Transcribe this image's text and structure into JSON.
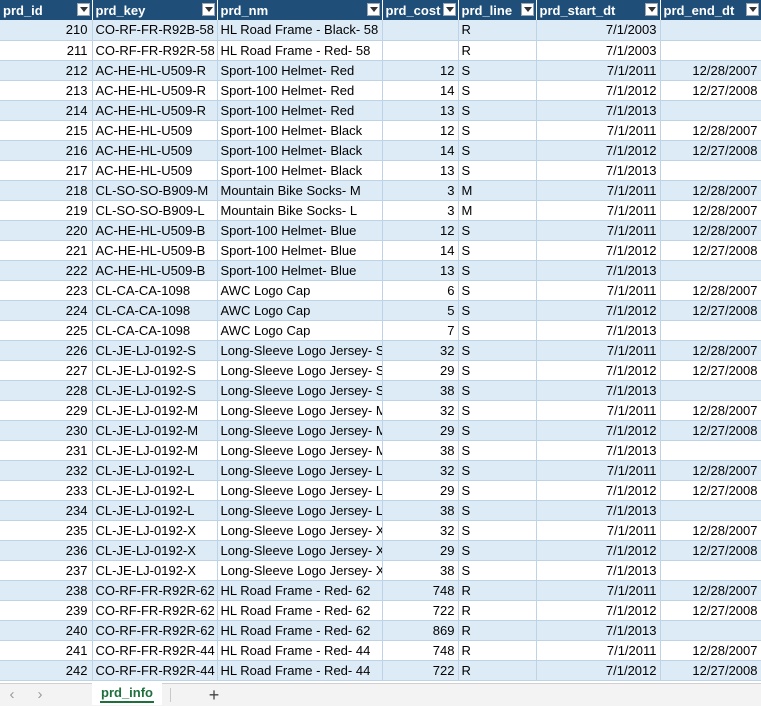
{
  "columns": [
    "prd_id",
    "prd_key",
    "prd_nm",
    "prd_cost",
    "prd_line",
    "prd_start_dt",
    "prd_end_dt"
  ],
  "rows": [
    [
      "210",
      "CO-RF-FR-R92B-58",
      "HL Road Frame - Black- 58",
      "",
      "R",
      "7/1/2003",
      ""
    ],
    [
      "211",
      "CO-RF-FR-R92R-58",
      "HL Road Frame - Red- 58",
      "",
      "R",
      "7/1/2003",
      ""
    ],
    [
      "212",
      "AC-HE-HL-U509-R",
      "Sport-100 Helmet- Red",
      "12",
      "S",
      "7/1/2011",
      "12/28/2007"
    ],
    [
      "213",
      "AC-HE-HL-U509-R",
      "Sport-100 Helmet- Red",
      "14",
      "S",
      "7/1/2012",
      "12/27/2008"
    ],
    [
      "214",
      "AC-HE-HL-U509-R",
      "Sport-100 Helmet- Red",
      "13",
      "S",
      "7/1/2013",
      ""
    ],
    [
      "215",
      "AC-HE-HL-U509",
      "Sport-100 Helmet- Black",
      "12",
      "S",
      "7/1/2011",
      "12/28/2007"
    ],
    [
      "216",
      "AC-HE-HL-U509",
      "Sport-100 Helmet- Black",
      "14",
      "S",
      "7/1/2012",
      "12/27/2008"
    ],
    [
      "217",
      "AC-HE-HL-U509",
      "Sport-100 Helmet- Black",
      "13",
      "S",
      "7/1/2013",
      ""
    ],
    [
      "218",
      "CL-SO-SO-B909-M",
      "Mountain Bike Socks- M",
      "3",
      "M",
      "7/1/2011",
      "12/28/2007"
    ],
    [
      "219",
      "CL-SO-SO-B909-L",
      "Mountain Bike Socks- L",
      "3",
      "M",
      "7/1/2011",
      "12/28/2007"
    ],
    [
      "220",
      "AC-HE-HL-U509-B",
      "Sport-100 Helmet- Blue",
      "12",
      "S",
      "7/1/2011",
      "12/28/2007"
    ],
    [
      "221",
      "AC-HE-HL-U509-B",
      "Sport-100 Helmet- Blue",
      "14",
      "S",
      "7/1/2012",
      "12/27/2008"
    ],
    [
      "222",
      "AC-HE-HL-U509-B",
      "Sport-100 Helmet- Blue",
      "13",
      "S",
      "7/1/2013",
      ""
    ],
    [
      "223",
      "CL-CA-CA-1098",
      "AWC Logo Cap",
      "6",
      "S",
      "7/1/2011",
      "12/28/2007"
    ],
    [
      "224",
      "CL-CA-CA-1098",
      "AWC Logo Cap",
      "5",
      "S",
      "7/1/2012",
      "12/27/2008"
    ],
    [
      "225",
      "CL-CA-CA-1098",
      "AWC Logo Cap",
      "7",
      "S",
      "7/1/2013",
      ""
    ],
    [
      "226",
      "CL-JE-LJ-0192-S",
      "Long-Sleeve Logo Jersey- S",
      "32",
      "S",
      "7/1/2011",
      "12/28/2007"
    ],
    [
      "227",
      "CL-JE-LJ-0192-S",
      "Long-Sleeve Logo Jersey- S",
      "29",
      "S",
      "7/1/2012",
      "12/27/2008"
    ],
    [
      "228",
      "CL-JE-LJ-0192-S",
      "Long-Sleeve Logo Jersey- S",
      "38",
      "S",
      "7/1/2013",
      ""
    ],
    [
      "229",
      "CL-JE-LJ-0192-M",
      "Long-Sleeve Logo Jersey- M",
      "32",
      "S",
      "7/1/2011",
      "12/28/2007"
    ],
    [
      "230",
      "CL-JE-LJ-0192-M",
      "Long-Sleeve Logo Jersey- M",
      "29",
      "S",
      "7/1/2012",
      "12/27/2008"
    ],
    [
      "231",
      "CL-JE-LJ-0192-M",
      "Long-Sleeve Logo Jersey- M",
      "38",
      "S",
      "7/1/2013",
      ""
    ],
    [
      "232",
      "CL-JE-LJ-0192-L",
      "Long-Sleeve Logo Jersey- L",
      "32",
      "S",
      "7/1/2011",
      "12/28/2007"
    ],
    [
      "233",
      "CL-JE-LJ-0192-L",
      "Long-Sleeve Logo Jersey- L",
      "29",
      "S",
      "7/1/2012",
      "12/27/2008"
    ],
    [
      "234",
      "CL-JE-LJ-0192-L",
      "Long-Sleeve Logo Jersey- L",
      "38",
      "S",
      "7/1/2013",
      ""
    ],
    [
      "235",
      "CL-JE-LJ-0192-X",
      "Long-Sleeve Logo Jersey- XI",
      "32",
      "S",
      "7/1/2011",
      "12/28/2007"
    ],
    [
      "236",
      "CL-JE-LJ-0192-X",
      "Long-Sleeve Logo Jersey- XI",
      "29",
      "S",
      "7/1/2012",
      "12/27/2008"
    ],
    [
      "237",
      "CL-JE-LJ-0192-X",
      "Long-Sleeve Logo Jersey- XI",
      "38",
      "S",
      "7/1/2013",
      ""
    ],
    [
      "238",
      "CO-RF-FR-R92R-62",
      "HL Road Frame - Red- 62",
      "748",
      "R",
      "7/1/2011",
      "12/28/2007"
    ],
    [
      "239",
      "CO-RF-FR-R92R-62",
      "HL Road Frame - Red- 62",
      "722",
      "R",
      "7/1/2012",
      "12/27/2008"
    ],
    [
      "240",
      "CO-RF-FR-R92R-62",
      "HL Road Frame - Red- 62",
      "869",
      "R",
      "7/1/2013",
      ""
    ],
    [
      "241",
      "CO-RF-FR-R92R-44",
      "HL Road Frame - Red- 44",
      "748",
      "R",
      "7/1/2011",
      "12/28/2007"
    ],
    [
      "242",
      "CO-RF-FR-R92R-44",
      "HL Road Frame - Red- 44",
      "722",
      "R",
      "7/1/2012",
      "12/27/2008"
    ]
  ],
  "sheet_tabs": [
    {
      "label": "prd_info",
      "active": true
    }
  ],
  "nav": {
    "prev": "‹",
    "next": "›",
    "add": "+"
  },
  "colors": {
    "header_bg": "#1f4e78",
    "band": "#ddebf7",
    "tab_accent": "#1e6f3c"
  }
}
